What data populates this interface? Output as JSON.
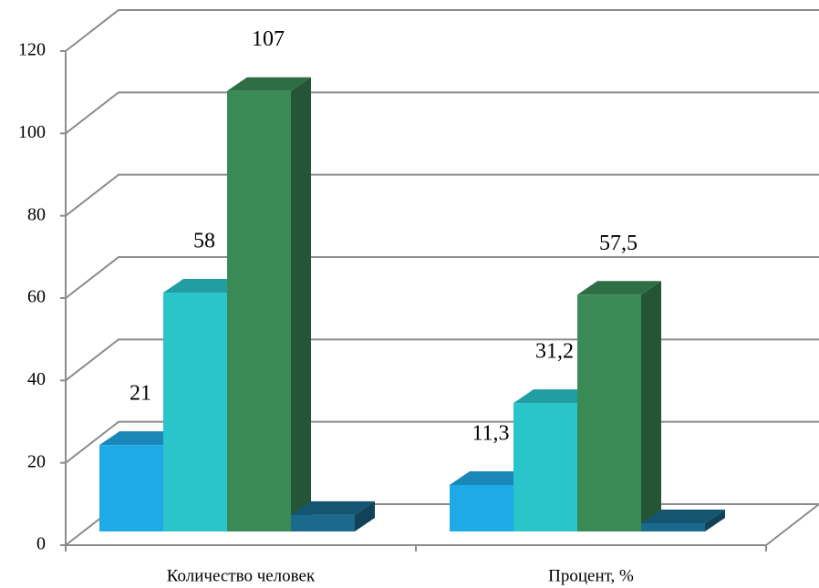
{
  "chart_data": {
    "type": "bar3d",
    "categories": [
      "Количество человек",
      "Процент, %"
    ],
    "series": [
      {
        "color": "#1fa9e6",
        "values": [
          21,
          11.3
        ],
        "value_labels": [
          "21",
          "11,3"
        ]
      },
      {
        "color": "#29c5cb",
        "values": [
          58,
          31.2
        ],
        "value_labels": [
          "58",
          "31,2"
        ]
      },
      {
        "color": "#3a8a56",
        "values": [
          107,
          57.5
        ],
        "value_labels": [
          "107",
          "57,5"
        ]
      },
      {
        "color": "#1a6a8e",
        "values": [
          4,
          2
        ]
      }
    ],
    "ylim": [
      0,
      120
    ],
    "yticks": [
      0,
      20,
      40,
      60,
      80,
      100,
      120
    ],
    "grid": true
  }
}
